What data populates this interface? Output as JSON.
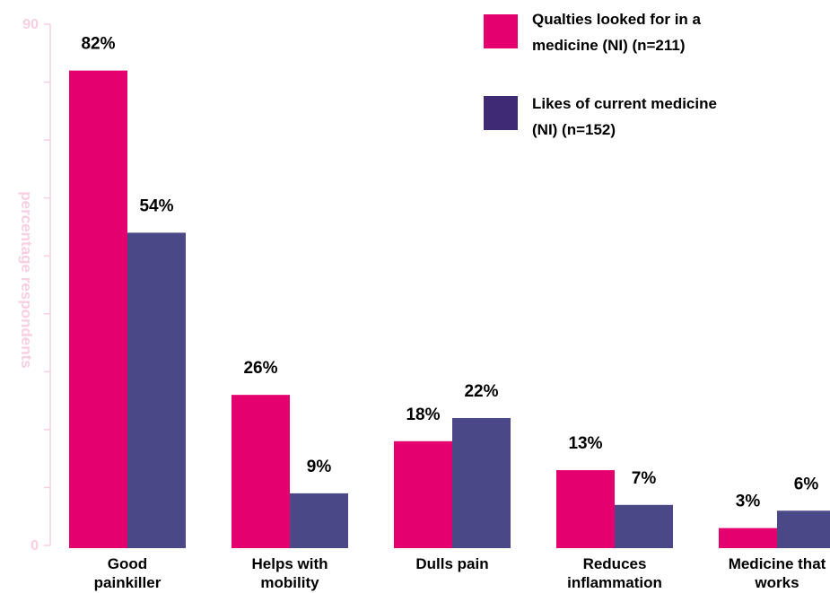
{
  "chart_data": {
    "type": "bar",
    "ylabel": "percentage respondents",
    "ylim": [
      0,
      90
    ],
    "ytick_labels": [
      "0",
      "90"
    ],
    "grid": false,
    "legend_position": "top-right",
    "categories": [
      [
        "Good",
        "painkiller"
      ],
      [
        "Helps with",
        "mobility"
      ],
      [
        "Dulls pain"
      ],
      [
        "Reduces",
        "inflammation"
      ],
      [
        "Medicine that",
        "works"
      ]
    ],
    "series": [
      {
        "name": [
          "Qualties looked for in a",
          "medicine (NI) (n=211)"
        ],
        "color": "#e5006f",
        "values": [
          82,
          26,
          18,
          13,
          3
        ],
        "labels": [
          "82%",
          "26%",
          "18%",
          "13%",
          "3%"
        ]
      },
      {
        "name": [
          "Likes of current medicine",
          "(NI) (n=152)"
        ],
        "color": "#4a4887",
        "legend_color": "#3f2a75",
        "values": [
          54,
          9,
          22,
          7,
          6
        ],
        "labels": [
          "54%",
          "9%",
          "22%",
          "7%",
          "6%"
        ]
      }
    ],
    "colors": {
      "axis": "#f8cfe1"
    }
  }
}
